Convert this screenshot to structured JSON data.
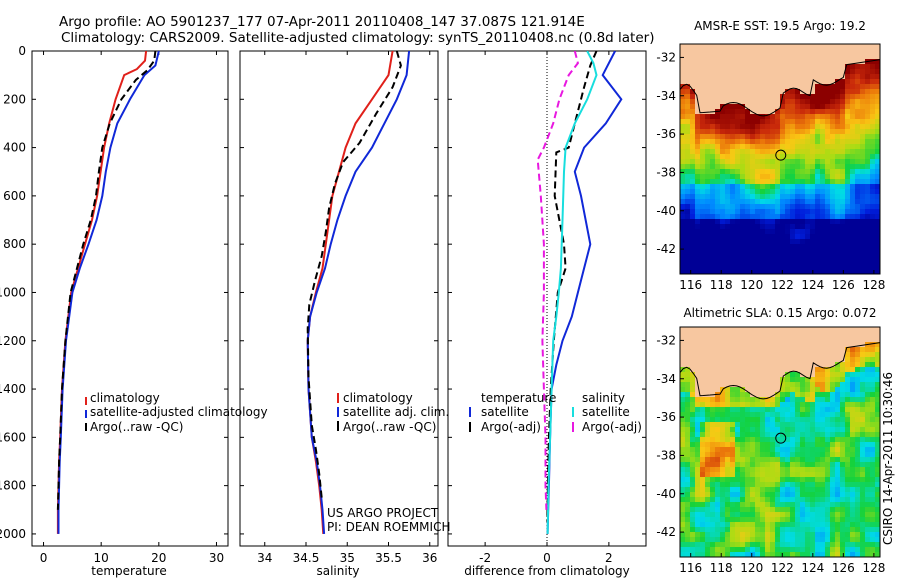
{
  "header": {
    "line1": "Argo profile: AO 5901237_177 07-Apr-2011 20110408_147 37.087S 121.914E",
    "line2": "Climatology: CARS2009. Satellite-adjusted climatology: synTS_20110408.nc (0.8d later)"
  },
  "footer": {
    "project_line1": "US ARGO PROJECT",
    "project_line2": "PI: DEAN ROEMMICH",
    "credit": "CSIRO 14-Apr-2011 10:30:46"
  },
  "colors": {
    "climatology": "#e0201a",
    "satellite": "#1028d8",
    "argo": "#000000",
    "sal_satellite": "#18dede",
    "sal_argo": "#e818e0",
    "land": "#f7c7a0"
  },
  "chart_data": [
    {
      "type": "line",
      "id": "temperature",
      "xlabel": "temperature",
      "ylabel": "",
      "xlim": [
        -2,
        32
      ],
      "ylim": [
        2050,
        0
      ],
      "xticks": [
        0,
        10,
        20,
        30
      ],
      "yticks": [
        0,
        200,
        400,
        600,
        800,
        1000,
        1200,
        1400,
        1600,
        1800,
        2000
      ],
      "legend": {
        "entries": [
          "climatology",
          "satellite-adjusted climatology",
          "Argo(..raw -QC)"
        ]
      },
      "series": [
        {
          "name": "climatology",
          "color": "#e0201a",
          "style": "solid",
          "x": [
            17.8,
            17.6,
            16.2,
            14.0,
            12.5,
            11.4,
            10.5,
            9.9,
            9.3,
            8.4,
            7.2,
            6.0,
            4.8,
            3.8,
            3.2,
            2.9,
            2.7,
            2.6,
            2.5,
            2.5
          ],
          "y": [
            0,
            40,
            75,
            100,
            200,
            300,
            400,
            500,
            600,
            700,
            800,
            900,
            1000,
            1200,
            1400,
            1600,
            1700,
            1800,
            1900,
            2000
          ]
        },
        {
          "name": "satellite-adjusted climatology",
          "color": "#1028d8",
          "style": "solid",
          "x": [
            20.0,
            19.8,
            19.4,
            17.5,
            15.0,
            12.8,
            11.6,
            10.8,
            10.2,
            9.2,
            7.8,
            6.3,
            5.0,
            3.9,
            3.3,
            3.0,
            2.8,
            2.7,
            2.6,
            2.6
          ],
          "y": [
            0,
            20,
            60,
            100,
            200,
            300,
            400,
            500,
            600,
            700,
            800,
            900,
            1000,
            1200,
            1400,
            1600,
            1700,
            1800,
            1900,
            2000
          ]
        },
        {
          "name": "Argo(..raw -QC)",
          "color": "#000000",
          "style": "dashed",
          "x": [
            19.4,
            19.2,
            18.0,
            16.0,
            13.5,
            11.5,
            10.2,
            9.6,
            9.1,
            8.2,
            6.9,
            5.8,
            4.7,
            3.8,
            3.2,
            2.9,
            2.7,
            2.6,
            2.5
          ],
          "y": [
            0,
            40,
            80,
            120,
            200,
            300,
            400,
            500,
            600,
            700,
            800,
            900,
            1000,
            1200,
            1400,
            1600,
            1700,
            1800,
            1900
          ]
        }
      ]
    },
    {
      "type": "line",
      "id": "salinity",
      "xlabel": "salinity",
      "ylabel": "",
      "xlim": [
        33.7,
        36.1
      ],
      "ylim": [
        2050,
        0
      ],
      "xticks": [
        34,
        34.5,
        35,
        35.5,
        36
      ],
      "legend": {
        "entries": [
          "climatology",
          "satellite adj. clim.",
          "Argo(..raw -QC)"
        ]
      },
      "series": [
        {
          "name": "climatology",
          "color": "#e0201a",
          "style": "solid",
          "x": [
            35.55,
            35.5,
            35.3,
            35.1,
            34.98,
            34.9,
            34.82,
            34.78,
            34.74,
            34.7,
            34.62,
            34.55,
            34.52,
            34.53,
            34.57,
            34.62,
            34.66,
            34.69,
            34.71
          ],
          "y": [
            0,
            100,
            200,
            300,
            400,
            500,
            600,
            700,
            800,
            900,
            1000,
            1100,
            1200,
            1400,
            1600,
            1700,
            1800,
            1900,
            2000
          ]
        },
        {
          "name": "satellite adj. clim.",
          "color": "#1028d8",
          "style": "solid",
          "x": [
            35.75,
            35.72,
            35.6,
            35.45,
            35.3,
            35.1,
            34.98,
            34.88,
            34.8,
            34.73,
            34.63,
            34.55,
            34.52,
            34.53,
            34.57,
            34.63,
            34.67,
            34.7,
            34.72
          ],
          "y": [
            0,
            100,
            200,
            300,
            400,
            500,
            600,
            700,
            800,
            900,
            1000,
            1100,
            1200,
            1400,
            1600,
            1700,
            1800,
            1900,
            2000
          ]
        },
        {
          "name": "Argo(..raw -QC)",
          "color": "#000000",
          "style": "dashed",
          "x": [
            35.6,
            35.65,
            35.55,
            35.35,
            35.15,
            34.95,
            34.85,
            34.78,
            34.74,
            34.69,
            34.61,
            34.54,
            34.52,
            34.53,
            34.57,
            34.62,
            34.66,
            34.69
          ],
          "y": [
            0,
            60,
            150,
            260,
            380,
            460,
            550,
            650,
            750,
            850,
            950,
            1050,
            1150,
            1350,
            1550,
            1650,
            1750,
            1850
          ]
        }
      ]
    },
    {
      "type": "line",
      "id": "difference",
      "xlabel": "difference from climatology",
      "ylabel": "",
      "xlim": [
        -3.2,
        3.2
      ],
      "ylim": [
        2050,
        0
      ],
      "xticks": [
        -2,
        0,
        2
      ],
      "legend": {
        "entries": [
          "temperature",
          "satellite",
          "Argo(-adj)",
          "salinity",
          "satellite",
          "Argo(-adj)"
        ]
      },
      "series": [
        {
          "name": "satellite",
          "quantity": "temperature",
          "color": "#1028d8",
          "style": "solid",
          "x": [
            2.2,
            2.0,
            1.8,
            2.4,
            1.9,
            1.2,
            0.9,
            1.1,
            1.4,
            1.2,
            1.0,
            0.8,
            0.5,
            0.3,
            0.15,
            0.1,
            0.06,
            0.04,
            0.02
          ],
          "y": [
            0,
            50,
            100,
            200,
            300,
            400,
            500,
            600,
            800,
            900,
            1000,
            1100,
            1200,
            1300,
            1400,
            1600,
            1800,
            1900,
            2000
          ]
        },
        {
          "name": "Argo(-adj)",
          "quantity": "temperature",
          "color": "#000000",
          "style": "dashed",
          "x": [
            1.6,
            1.4,
            1.2,
            0.9,
            0.7,
            0.3,
            0.25,
            0.55,
            0.6,
            0.35,
            0.22,
            0.12,
            0.06,
            0.03,
            0.01
          ],
          "y": [
            0,
            60,
            150,
            300,
            400,
            420,
            600,
            800,
            900,
            1000,
            1200,
            1400,
            1600,
            1800,
            1950
          ]
        },
        {
          "name": "satellite",
          "quantity": "salinity",
          "color": "#18dede",
          "style": "solid",
          "x": [
            1.3,
            1.5,
            1.6,
            1.3,
            0.9,
            0.6,
            0.55,
            0.5,
            0.45,
            0.38,
            0.3,
            0.2,
            0.15,
            0.1,
            0.05,
            0.02
          ],
          "y": [
            0,
            50,
            100,
            200,
            300,
            400,
            500,
            700,
            900,
            1000,
            1100,
            1200,
            1400,
            1600,
            1800,
            2000
          ]
        },
        {
          "name": "Argo(-adj)",
          "quantity": "salinity",
          "color": "#e818e0",
          "style": "dashed",
          "x": [
            0.9,
            1.0,
            0.7,
            0.4,
            0.2,
            -0.1,
            -0.3,
            -0.2,
            -0.1,
            -0.1,
            -0.15,
            -0.1,
            -0.05,
            -0.05,
            -0.02
          ],
          "y": [
            0,
            50,
            100,
            200,
            300,
            400,
            450,
            600,
            800,
            1000,
            1200,
            1400,
            1600,
            1800,
            1900
          ]
        }
      ]
    },
    {
      "type": "heatmap",
      "id": "sst_map",
      "title": "AMSR-E SST: 19.5 Argo: 19.2",
      "xlim": [
        115.3,
        128.4
      ],
      "ylim": [
        -43.3,
        -31.3
      ],
      "xticks": [
        116,
        118,
        120,
        122,
        124,
        126,
        128
      ],
      "yticks": [
        -32,
        -34,
        -36,
        -38,
        -40,
        -42
      ],
      "profile_location": [
        121.9,
        -37.1
      ]
    },
    {
      "type": "heatmap",
      "id": "sla_map",
      "title": "Altimetric SLA: 0.15 Argo: 0.072",
      "xlim": [
        115.3,
        128.4
      ],
      "ylim": [
        -43.3,
        -31.3
      ],
      "xticks": [
        116,
        118,
        120,
        122,
        124,
        126,
        128
      ],
      "yticks": [
        -32,
        -34,
        -36,
        -38,
        -40,
        -42
      ],
      "profile_location": [
        121.9,
        -37.1
      ]
    }
  ]
}
